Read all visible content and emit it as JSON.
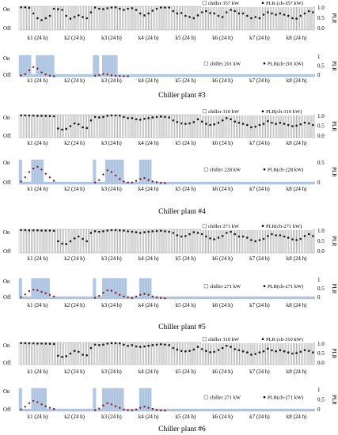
{
  "figure": {
    "y_left_ticks": [
      "On",
      "Off"
    ],
    "y_right_label": "PLR",
    "x_categories": [
      "k1 (24 h)",
      "k2 (24 h)",
      "k3 (24 h)",
      "k4 (24 h)",
      "k5 (24 h)",
      "k6 (24 h)",
      "k7 (24 h)",
      "k8 (24 h)"
    ],
    "colors": {
      "bar": "#b7cde8",
      "bar_edge": "#c0c0c0",
      "dot": "#1a1a1a",
      "dot_small": "#7a1f1f",
      "line": "#4a78b5"
    }
  },
  "captions": [
    "Chiller plant #3",
    "Chiller plant #4",
    "Chiller plant #5",
    "Chiller plant #6"
  ],
  "chart_data": [
    {
      "type": "bar",
      "legend": [
        "chiller 357 kW",
        "PLR (ch-357 kW)"
      ],
      "y_right_ticks": [
        "1.0",
        "0.5",
        "0.0"
      ],
      "ylim_right": [
        0,
        1.0
      ],
      "on_intervals": [
        [
          0,
          192
        ]
      ],
      "plr_series": [
        {
          "k": 1,
          "values": [
            0.96,
            0.96,
            0.94,
            0.7,
            0.5,
            0.42,
            0.5,
            0.6,
            0.9
          ]
        },
        {
          "k": 2,
          "values": [
            0.88,
            0.85,
            0.6,
            0.48,
            0.55,
            0.62,
            0.55,
            0.5,
            0.75
          ]
        },
        {
          "k": 3,
          "values": [
            0.95,
            0.9,
            0.88,
            0.92,
            0.95,
            0.96,
            0.9,
            0.85,
            0.9
          ]
        },
        {
          "k": 4,
          "values": [
            0.92,
            0.85,
            0.7,
            0.62,
            0.7,
            0.82,
            0.9,
            0.95,
            0.95
          ]
        },
        {
          "k": 5,
          "values": [
            0.95,
            0.8,
            0.7,
            0.72,
            0.6,
            0.55,
            0.5,
            0.62,
            0.75
          ]
        },
        {
          "k": 6,
          "values": [
            0.8,
            0.72,
            0.7,
            0.6,
            0.55,
            0.75,
            0.85,
            0.8,
            0.7
          ]
        },
        {
          "k": 7,
          "values": [
            0.7,
            0.6,
            0.5,
            0.55,
            0.5,
            0.65,
            0.75,
            0.7,
            0.65
          ]
        },
        {
          "k": 8,
          "values": [
            0.7,
            0.65,
            0.6,
            0.5,
            0.48,
            0.6,
            0.7,
            0.8,
            0.75
          ]
        }
      ]
    },
    {
      "type": "bar",
      "legend": [
        "chiller 201 kW",
        "PLR(ch-201 kW)"
      ],
      "y_right_ticks": [
        "1",
        "0.5",
        "0"
      ],
      "ylim_right": [
        0,
        1.0
      ],
      "on_intervals": [
        [
          0,
          8
        ],
        [
          11,
          23
        ],
        [
          48,
          52
        ],
        [
          54,
          64
        ]
      ],
      "plr_series": [
        {
          "k": 1,
          "values": [
            0.06,
            0.12,
            0.3,
            0.45,
            0.38,
            0.2,
            0.1,
            0.05,
            0.02
          ]
        },
        {
          "k": 3,
          "values": [
            0.05,
            0.08,
            0.12,
            0.1,
            0.06,
            0.04,
            0.03,
            0.02,
            0.02
          ]
        }
      ]
    },
    {
      "type": "bar",
      "legend": [
        "chiller 310 kW",
        "PLR(ch-310 kW)"
      ],
      "y_right_ticks": [
        "1.0",
        "0.5",
        "0.0"
      ],
      "ylim_right": [
        0,
        1.0
      ],
      "on_intervals": [
        [
          0,
          192
        ]
      ],
      "plr_series": [
        {
          "k": 1,
          "values": [
            0.97,
            0.97,
            0.96,
            0.96,
            0.95,
            0.95,
            0.95,
            0.94,
            0.93
          ]
        },
        {
          "k": 2,
          "values": [
            0.4,
            0.35,
            0.38,
            0.5,
            0.62,
            0.58,
            0.45,
            0.42,
            0.75
          ]
        },
        {
          "k": 3,
          "values": [
            0.9,
            0.88,
            0.9,
            0.95,
            0.97,
            0.97,
            0.96,
            0.9,
            0.85
          ]
        },
        {
          "k": 4,
          "values": [
            0.85,
            0.8,
            0.78,
            0.82,
            0.85,
            0.88,
            0.9,
            0.92,
            0.9
          ]
        },
        {
          "k": 5,
          "values": [
            0.88,
            0.75,
            0.68,
            0.62,
            0.6,
            0.62,
            0.68,
            0.8,
            0.7
          ]
        },
        {
          "k": 6,
          "values": [
            0.6,
            0.55,
            0.58,
            0.65,
            0.75,
            0.85,
            0.8,
            0.7,
            0.65
          ]
        },
        {
          "k": 7,
          "values": [
            0.6,
            0.55,
            0.45,
            0.48,
            0.55,
            0.6,
            0.72,
            0.65,
            0.6
          ]
        },
        {
          "k": 8,
          "values": [
            0.65,
            0.6,
            0.55,
            0.5,
            0.52,
            0.58,
            0.65,
            0.62,
            0.55
          ]
        }
      ]
    },
    {
      "type": "bar",
      "legend": [
        "chiller 228 kW",
        "PLR(ch-228 kW)"
      ],
      "y_right_ticks": [
        "0.5",
        "0"
      ],
      "ylim_right": [
        0,
        0.7
      ],
      "on_intervals": [
        [
          0,
          2
        ],
        [
          8,
          16
        ],
        [
          48,
          50
        ],
        [
          56,
          68
        ],
        [
          78,
          86
        ]
      ],
      "plr_series": [
        {
          "k": 1,
          "values": [
            0.08,
            0.2,
            0.35,
            0.45,
            0.5,
            0.42,
            0.3,
            0.2,
            0.1
          ]
        },
        {
          "k": 3,
          "values": [
            0.05,
            0.12,
            0.28,
            0.4,
            0.35,
            0.25,
            0.15,
            0.08,
            0.05
          ]
        },
        {
          "k": 4,
          "values": [
            0.05,
            0.1,
            0.15,
            0.18,
            0.12,
            0.08,
            0.06,
            0.04,
            0.03
          ]
        }
      ]
    },
    {
      "type": "bar",
      "legend": [
        "chiller 271 kW",
        "PLR(ch-271 kW)"
      ],
      "y_right_ticks": [
        "1.0",
        "0.5",
        "0.0"
      ],
      "ylim_right": [
        0,
        1.0
      ],
      "on_intervals": [
        [
          0,
          192
        ]
      ],
      "plr_series": [
        {
          "k": 1,
          "values": [
            0.97,
            0.97,
            0.96,
            0.96,
            0.96,
            0.95,
            0.95,
            0.95,
            0.94
          ]
        },
        {
          "k": 2,
          "values": [
            0.5,
            0.4,
            0.38,
            0.5,
            0.62,
            0.7,
            0.6,
            0.5,
            0.85
          ]
        },
        {
          "k": 3,
          "values": [
            0.92,
            0.9,
            0.92,
            0.95,
            0.97,
            0.97,
            0.96,
            0.95,
            0.92
          ]
        },
        {
          "k": 4,
          "values": [
            0.9,
            0.88,
            0.85,
            0.88,
            0.9,
            0.92,
            0.93,
            0.94,
            0.92
          ]
        },
        {
          "k": 5,
          "values": [
            0.9,
            0.85,
            0.75,
            0.7,
            0.72,
            0.8,
            0.88,
            0.85,
            0.8
          ]
        },
        {
          "k": 6,
          "values": [
            0.7,
            0.62,
            0.58,
            0.65,
            0.72,
            0.85,
            0.9,
            0.8,
            0.7
          ]
        },
        {
          "k": 7,
          "values": [
            0.7,
            0.65,
            0.55,
            0.5,
            0.55,
            0.6,
            0.72,
            0.8,
            0.75
          ]
        },
        {
          "k": 8,
          "values": [
            0.75,
            0.7,
            0.65,
            0.58,
            0.55,
            0.6,
            0.72,
            0.8,
            0.72
          ]
        }
      ]
    },
    {
      "type": "bar",
      "legend": [
        "chiller 271 kW",
        "PLR(ch-271 kW)"
      ],
      "y_right_ticks": [
        "1",
        "0.5",
        "0"
      ],
      "ylim_right": [
        0,
        1.0
      ],
      "on_intervals": [
        [
          0,
          2
        ],
        [
          8,
          20
        ],
        [
          48,
          50
        ],
        [
          54,
          70
        ],
        [
          78,
          86
        ]
      ],
      "plr_series": [
        {
          "k": 1,
          "values": [
            0.08,
            0.22,
            0.38,
            0.45,
            0.42,
            0.35,
            0.28,
            0.2,
            0.12
          ]
        },
        {
          "k": 3,
          "values": [
            0.06,
            0.15,
            0.3,
            0.42,
            0.4,
            0.3,
            0.2,
            0.12,
            0.08
          ]
        },
        {
          "k": 4,
          "values": [
            0.05,
            0.12,
            0.2,
            0.25,
            0.2,
            0.12,
            0.08,
            0.05,
            0.03
          ]
        }
      ]
    },
    {
      "type": "bar",
      "legend": [
        "chiller 310 kW",
        "PLR (ch-310 kW)"
      ],
      "y_right_ticks": [
        "1.0",
        "0.5",
        "0.0"
      ],
      "ylim_right": [
        0,
        1.0
      ],
      "on_intervals": [
        [
          0,
          192
        ]
      ],
      "plr_series": [
        {
          "k": 1,
          "values": [
            0.97,
            0.97,
            0.96,
            0.96,
            0.95,
            0.95,
            0.95,
            0.94,
            0.93
          ]
        },
        {
          "k": 2,
          "values": [
            0.4,
            0.35,
            0.38,
            0.5,
            0.62,
            0.58,
            0.45,
            0.42,
            0.75
          ]
        },
        {
          "k": 3,
          "values": [
            0.9,
            0.88,
            0.9,
            0.95,
            0.97,
            0.97,
            0.96,
            0.9,
            0.85
          ]
        },
        {
          "k": 4,
          "values": [
            0.88,
            0.82,
            0.8,
            0.82,
            0.85,
            0.88,
            0.9,
            0.92,
            0.9
          ]
        },
        {
          "k": 5,
          "values": [
            0.88,
            0.75,
            0.68,
            0.62,
            0.6,
            0.62,
            0.68,
            0.8,
            0.7
          ]
        },
        {
          "k": 6,
          "values": [
            0.62,
            0.56,
            0.58,
            0.66,
            0.75,
            0.85,
            0.8,
            0.7,
            0.65
          ]
        },
        {
          "k": 7,
          "values": [
            0.6,
            0.55,
            0.45,
            0.48,
            0.55,
            0.6,
            0.72,
            0.65,
            0.6
          ]
        },
        {
          "k": 8,
          "values": [
            0.65,
            0.6,
            0.55,
            0.5,
            0.52,
            0.58,
            0.65,
            0.62,
            0.55
          ]
        }
      ]
    },
    {
      "type": "bar",
      "legend": [
        "chiller 271 kW",
        "PLR(ch-271 kW)"
      ],
      "y_right_ticks": [
        "1",
        "0.5",
        "0"
      ],
      "ylim_right": [
        0,
        1.0
      ],
      "on_intervals": [
        [
          0,
          2
        ],
        [
          8,
          18
        ],
        [
          48,
          50
        ],
        [
          54,
          68
        ],
        [
          78,
          86
        ]
      ],
      "plr_series": [
        {
          "k": 1,
          "values": [
            0.08,
            0.2,
            0.35,
            0.45,
            0.4,
            0.3,
            0.22,
            0.15,
            0.1
          ]
        },
        {
          "k": 3,
          "values": [
            0.05,
            0.12,
            0.25,
            0.35,
            0.3,
            0.22,
            0.15,
            0.08,
            0.05
          ]
        },
        {
          "k": 4,
          "values": [
            0.04,
            0.08,
            0.15,
            0.2,
            0.15,
            0.1,
            0.06,
            0.04,
            0.03
          ]
        }
      ]
    }
  ]
}
